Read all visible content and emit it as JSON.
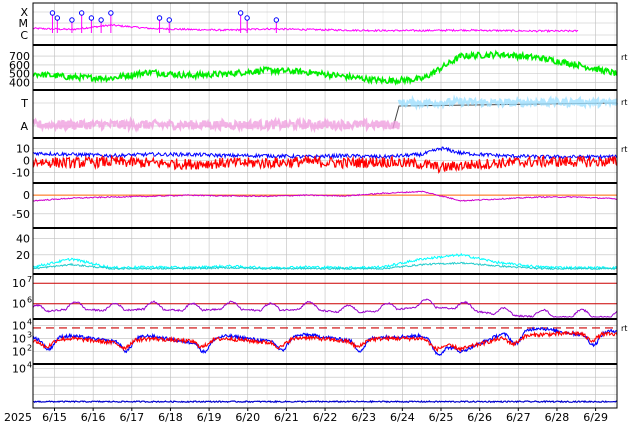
{
  "chart_data": {
    "type": "line",
    "title": "",
    "year_label": "2025",
    "x_ticks": [
      "6/15",
      "6/16",
      "6/17",
      "6/18",
      "6/19",
      "6/20",
      "6/21",
      "6/22",
      "6/23",
      "6/24",
      "6/25",
      "6/26",
      "6/27",
      "6/28",
      "6/29"
    ],
    "x_range": [
      "2025-06-14T12:00",
      "2025-06-29T12:00"
    ],
    "panels": [
      {
        "id": "xray-flares",
        "y_tick_labels": [
          "X",
          "M",
          "C"
        ],
        "right_label": "",
        "series": [
          {
            "color": "#ff00ff",
            "values": [
              0.3,
              0.25,
              0.45,
              0.3,
              0.25,
              0.22,
              0.28,
              0.25,
              0.22,
              0.2,
              0.2,
              0.22,
              0.2,
              0.18,
              0.18
            ]
          }
        ],
        "markers_x": [
          "2025-06-15T00:00",
          "2025-06-15T03:00",
          "2025-06-15T12:00",
          "2025-06-15T18:00",
          "2025-06-16T00:00",
          "2025-06-16T06:00",
          "2025-06-16T12:00",
          "2025-06-17T18:00",
          "2025-06-18T00:00",
          "2025-06-19T20:00",
          "2025-06-20T00:00",
          "2025-06-20T18:00"
        ]
      },
      {
        "id": "solar-wind-speed",
        "y_ticks": [
          400,
          500,
          600,
          700
        ],
        "ylim": [
          350,
          780
        ],
        "right_label": "rt",
        "series": [
          {
            "color": "#00ee00",
            "x": [
              0,
              1,
              2,
              3,
              4,
              5,
              6,
              7,
              8,
              9,
              10,
              11,
              12,
              13,
              14,
              15
            ],
            "values": [
              500,
              460,
              450,
              520,
              480,
              500,
              540,
              520,
              470,
              420,
              440,
              700,
              720,
              680,
              600,
              500
            ]
          }
        ]
      },
      {
        "id": "imf-sector",
        "y_tick_labels": [
          "T",
          "A"
        ],
        "right_label": "rt",
        "series": [
          {
            "color": "#f0a0e0",
            "x": [
              0,
              1,
              2,
              3,
              4,
              5,
              6,
              7,
              8,
              9,
              9.4
            ],
            "values": [
              0.25,
              0.25,
              0.25,
              0.25,
              0.25,
              0.25,
              0.25,
              0.25,
              0.25,
              0.25,
              0.25
            ]
          },
          {
            "color": "#9fe0ff",
            "x": [
              9.4,
              10,
              11,
              12,
              13,
              14,
              15
            ],
            "values": [
              0.78,
              0.78,
              0.8,
              0.78,
              0.8,
              0.8,
              0.78
            ]
          }
        ]
      },
      {
        "id": "imf-components",
        "y_ticks": [
          -10,
          0,
          10
        ],
        "ylim": [
          -16,
          16
        ],
        "right_label": "rt",
        "series": [
          {
            "color": "#0000ff",
            "x": [
              0,
              1,
              2,
              3,
              4,
              5,
              6,
              7,
              8,
              9,
              10,
              10.5,
              11,
              12,
              13,
              14,
              15
            ],
            "values": [
              6,
              5,
              4,
              5,
              5,
              4,
              4,
              3,
              4,
              3,
              5,
              10,
              6,
              4,
              3,
              3,
              3
            ]
          },
          {
            "color": "#ff0000",
            "x": [
              0,
              1,
              2,
              3,
              4,
              5,
              6,
              7,
              8,
              9,
              10,
              10.5,
              11,
              12,
              13,
              14,
              15
            ],
            "values": [
              -1,
              -2,
              -1,
              -2,
              -3,
              -2,
              -2,
              -1,
              -2,
              -1,
              -3,
              -6,
              -4,
              -2,
              -1,
              -1,
              -1
            ]
          }
        ]
      },
      {
        "id": "dst-index",
        "y_ticks": [
          -50,
          0
        ],
        "ylim": [
          -80,
          30
        ],
        "right_label": "",
        "series": [
          {
            "color": "#cc00cc",
            "x": [
              0,
              1,
              2,
              3,
              4,
              5,
              6,
              7,
              8,
              9,
              10,
              11,
              12,
              13,
              14,
              15
            ],
            "values": [
              -15,
              -8,
              -5,
              -3,
              0,
              -2,
              -3,
              0,
              -2,
              5,
              10,
              -15,
              -10,
              -5,
              -5,
              -10
            ]
          }
        ]
      },
      {
        "id": "kp-index",
        "y_ticks": [
          20,
          40
        ],
        "ylim": [
          0,
          52
        ],
        "right_label": "",
        "series": [
          {
            "color": "#00ffff",
            "x": [
              0,
              1,
              2,
              3,
              4,
              5,
              6,
              7,
              8,
              9,
              10,
              11,
              12,
              13,
              14,
              15
            ],
            "values": [
              5,
              15,
              4,
              5,
              4,
              6,
              4,
              5,
              4,
              5,
              15,
              20,
              10,
              5,
              4,
              4
            ]
          },
          {
            "color": "#22cccc",
            "x": [
              0,
              1,
              2,
              3,
              4,
              5,
              6,
              7,
              8,
              9,
              10,
              11,
              12,
              13,
              14,
              15
            ],
            "values": [
              3,
              8,
              3,
              3,
              3,
              4,
              3,
              3,
              3,
              3,
              8,
              10,
              6,
              3,
              3,
              3
            ]
          }
        ]
      },
      {
        "id": "electron-flux",
        "y_ticks_log": [
          6,
          7
        ],
        "ylim_log": [
          5.4,
          7.4
        ],
        "right_label": "",
        "threshold_lines_log": [
          6,
          7
        ],
        "series": [
          {
            "color": "#9900cc",
            "x": [
              0,
              1,
              2,
              3,
              4,
              5,
              6,
              7,
              8,
              9,
              10,
              11,
              12,
              13,
              14,
              15
            ],
            "values_log": [
              5.7,
              5.9,
              5.8,
              5.9,
              5.8,
              5.9,
              5.8,
              5.9,
              5.7,
              5.8,
              6.0,
              5.9,
              5.6,
              5.5,
              5.5,
              5.5
            ]
          }
        ]
      },
      {
        "id": "proton-flux",
        "y_ticks_log": [
          2,
          3,
          4
        ],
        "ylim_log": [
          1.3,
          4.4
        ],
        "right_label": "rt",
        "threshold_line_log": 3.8,
        "series": [
          {
            "color": "#0000ff",
            "x": [
              0,
              1,
              2,
              3,
              4,
              5,
              6,
              7,
              8,
              9,
              10,
              11,
              12,
              13,
              14,
              15
            ],
            "values_log": [
              3.0,
              3.2,
              2.8,
              3.2,
              2.7,
              3.2,
              2.8,
              3.3,
              2.9,
              3.1,
              3.2,
              2.0,
              3.3,
              3.8,
              3.3,
              3.6
            ]
          },
          {
            "color": "#ff0000",
            "x": [
              0,
              1,
              2,
              3,
              4,
              5,
              6,
              7,
              8,
              9,
              10,
              11,
              12,
              13,
              14,
              15
            ],
            "values_log": [
              2.8,
              3.0,
              2.7,
              3.0,
              2.8,
              3.0,
              2.7,
              3.1,
              2.8,
              3.0,
              3.0,
              2.2,
              3.0,
              3.3,
              3.4,
              3.3
            ]
          }
        ]
      },
      {
        "id": "high-energy-flux",
        "y_ticks_log": [
          4
        ],
        "ylim_log": [
          -0.3,
          4.4
        ],
        "right_label": "",
        "series": [
          {
            "color": "#0000cc",
            "x": [
              0,
              15
            ],
            "values_log": [
              0.2,
              0.2
            ]
          }
        ]
      }
    ]
  }
}
